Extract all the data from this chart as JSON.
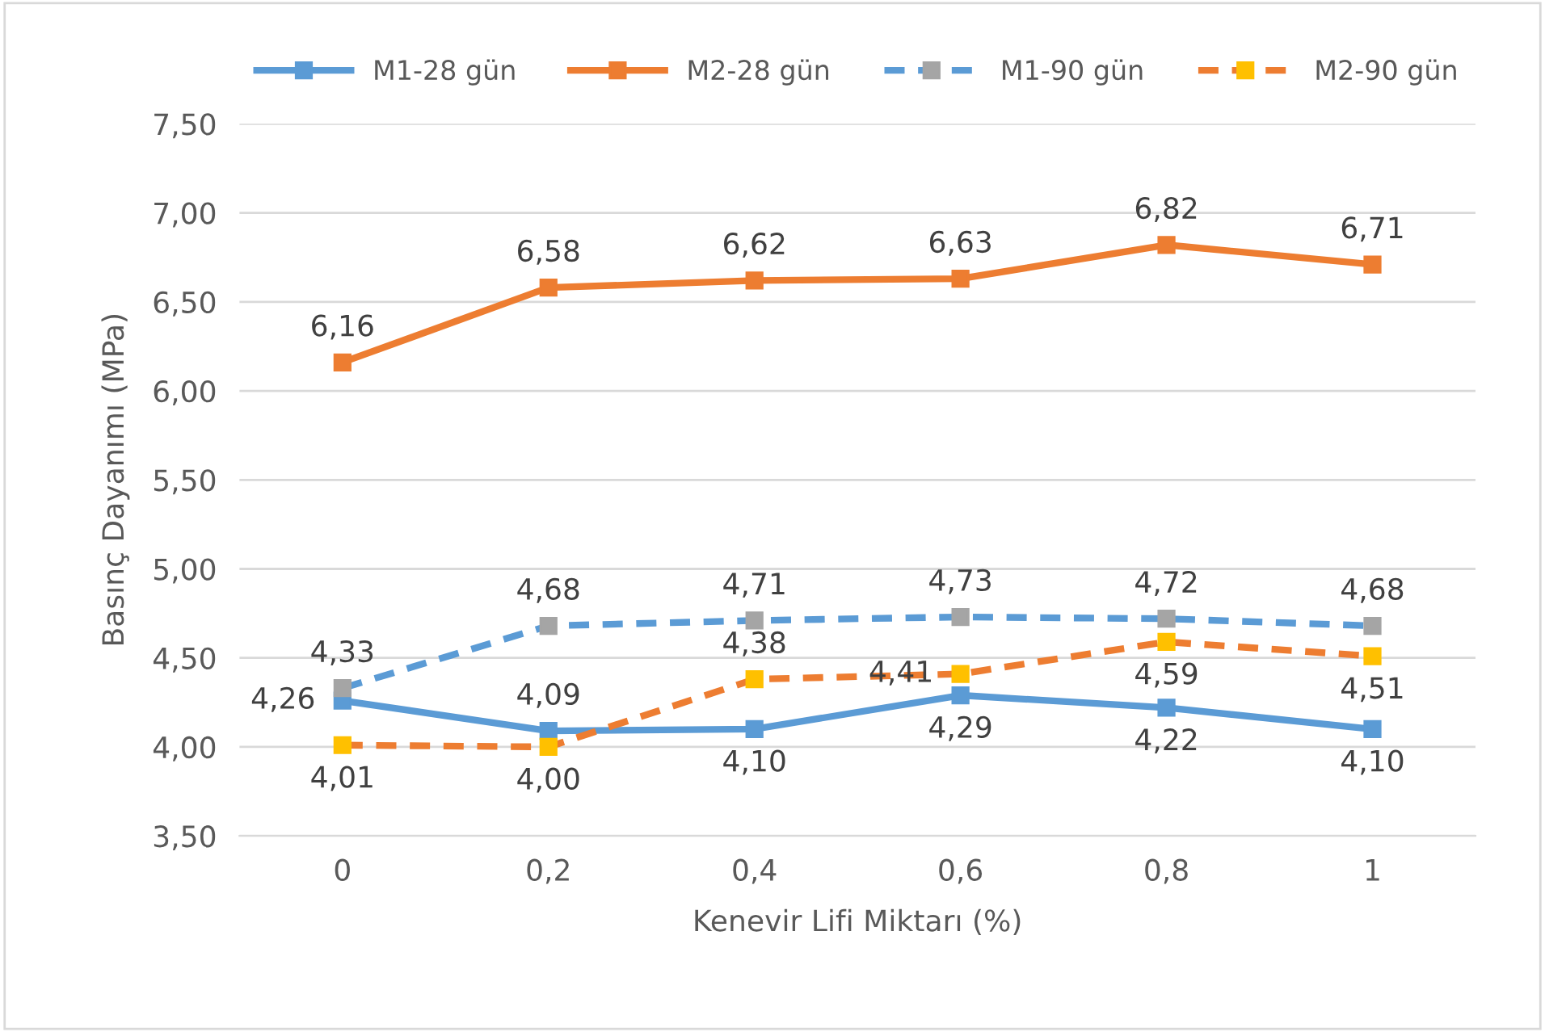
{
  "chart_data": {
    "type": "line",
    "xlabel": "Kenevir Lifi Miktarı (%)",
    "ylabel": "Basınç Dayanımı (MPa)",
    "categories": [
      "0",
      "0,2",
      "0,4",
      "0,6",
      "0,8",
      "1"
    ],
    "ylim": [
      3.5,
      7.5
    ],
    "yticks": [
      {
        "value": 3.5,
        "label": "3,50"
      },
      {
        "value": 4.0,
        "label": "4,00"
      },
      {
        "value": 4.5,
        "label": "4,50"
      },
      {
        "value": 5.0,
        "label": "5,00"
      },
      {
        "value": 5.5,
        "label": "5,50"
      },
      {
        "value": 6.0,
        "label": "6,00"
      },
      {
        "value": 6.5,
        "label": "6,50"
      },
      {
        "value": 7.0,
        "label": "7,00"
      },
      {
        "value": 7.5,
        "label": "7,50"
      }
    ],
    "grid": "y",
    "legend": "top",
    "marker": "square",
    "series": [
      {
        "name": "M1-28 gün",
        "color": "#5b9bd5",
        "line_style": "solid",
        "values": [
          4.26,
          4.09,
          4.1,
          4.29,
          4.22,
          4.1
        ],
        "value_labels": [
          "4,26",
          "4,09",
          "4,10",
          "4,29",
          "4,22",
          "4,10"
        ]
      },
      {
        "name": "M2-28 gün",
        "color": "#ed7d31",
        "line_style": "solid",
        "values": [
          6.16,
          6.58,
          6.62,
          6.63,
          6.82,
          6.71
        ],
        "value_labels": [
          "6,16",
          "6,58",
          "6,62",
          "6,63",
          "6,82",
          "6,71"
        ]
      },
      {
        "name": "M1-90 gün",
        "color": "#5b9bd5",
        "colors": [
          "#a5a5a5",
          "#a5a5a5",
          "#a5a5a5",
          "#a5a5a5",
          "#a5a5a5",
          "#a5a5a5"
        ],
        "line_style": "dashed",
        "values": [
          4.33,
          4.68,
          4.71,
          4.73,
          4.72,
          4.68
        ],
        "value_labels": [
          "4,33",
          "4,68",
          "4,71",
          "4,73",
          "4,72",
          "4,68"
        ]
      },
      {
        "name": "M2-90 gün",
        "color": "#ed7d31",
        "colors": [
          "#ffc000",
          "#ffc000",
          "#ffc000",
          "#ffc000",
          "#ffc000",
          "#ffc000"
        ],
        "line_style": "dashed",
        "values": [
          4.01,
          4.0,
          4.38,
          4.41,
          4.59,
          4.51
        ],
        "value_labels": [
          "4,01",
          "4,00",
          "4,38",
          "4,41",
          "4,59",
          "4,51"
        ]
      }
    ]
  }
}
